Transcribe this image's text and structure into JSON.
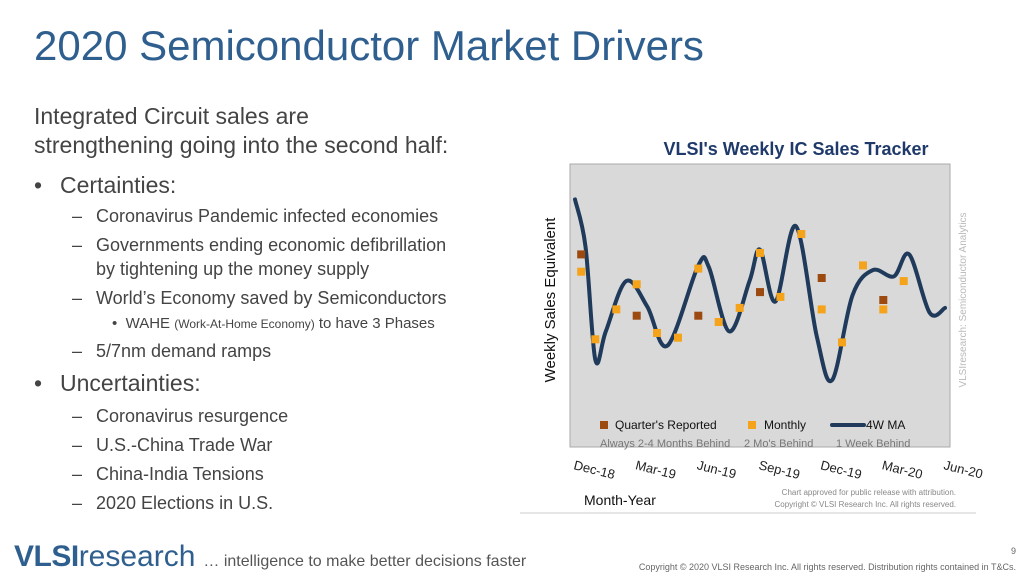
{
  "title": "2020 Semiconductor Market Drivers",
  "intro": [
    "Integrated Circuit sales are",
    "strengthening going into the second half:"
  ],
  "certainties": {
    "label": "Certainties:",
    "items": [
      "Coronavirus Pandemic infected economies",
      "Governments ending economic defibrillation",
      "by tightening up the money supply",
      "World’s Economy saved by Semiconductors",
      "5/7nm demand ramps"
    ],
    "wahe": {
      "pre": "WAHE ",
      "small": "(Work-At-Home Economy)",
      "post": " to have 3 Phases"
    }
  },
  "uncertainties": {
    "label": "Uncertainties:",
    "items": [
      "Coronavirus resurgence",
      "U.S.-China Trade War",
      "China-India Tensions",
      "2020 Elections in U.S."
    ]
  },
  "chart_data": {
    "type": "line",
    "title": "VLSI's Weekly IC Sales Tracker",
    "xlabel": "Month-Year",
    "ylabel": "Weekly Sales Equivalent",
    "categories": [
      "Dec-18",
      "Mar-19",
      "Jun-19",
      "Sep-19",
      "Dec-19",
      "Mar-20",
      "Jun-20"
    ],
    "series": [
      {
        "name": "Quarter's Reported",
        "note": "Always 2-4 Months Behind",
        "x": [
          0.1,
          1.0,
          2.0,
          3.0,
          4.0,
          5.0
        ],
        "values": [
          0.62,
          0.23,
          0.23,
          0.38,
          0.47,
          0.33
        ]
      },
      {
        "name": "Monthly",
        "note": "2 Mo's Behind",
        "x": [
          0.1,
          0.33,
          0.67,
          1.0,
          1.33,
          1.67,
          2.0,
          2.33,
          2.67,
          3.0,
          3.33,
          3.67,
          4.0,
          4.33,
          4.67,
          5.0,
          5.33
        ],
        "values": [
          0.51,
          0.08,
          0.27,
          0.43,
          0.12,
          0.09,
          0.53,
          0.19,
          0.28,
          0.63,
          0.35,
          0.75,
          0.27,
          0.06,
          0.55,
          0.27,
          0.45
        ]
      },
      {
        "name": "4W MA",
        "note": "1 Week Behind",
        "x": [
          0.0,
          0.17,
          0.33,
          0.5,
          0.83,
          1.17,
          1.5,
          2.0,
          2.17,
          2.5,
          2.83,
          3.0,
          3.25,
          3.58,
          3.92,
          4.17,
          4.5,
          4.83,
          5.17,
          5.42,
          5.75,
          6.0
        ],
        "values": [
          0.97,
          0.67,
          -0.05,
          0.13,
          0.45,
          0.29,
          0.04,
          0.55,
          0.54,
          0.13,
          0.45,
          0.65,
          0.32,
          0.8,
          0.1,
          -0.18,
          0.36,
          0.52,
          0.48,
          0.62,
          0.25,
          0.28
        ]
      }
    ],
    "ylim": [
      -0.3,
      1.1
    ],
    "grid": false,
    "legend_position": "bottom",
    "colors": {
      "quarter": "#9c4a0f",
      "monthly": "#f5a31a",
      "ma": "#1f3a5a",
      "plot_bg": "#d9d9d9",
      "title": "#1f3a6a"
    },
    "watermark": "VLSIresearch: Semiconductor Analytics",
    "approval": [
      "Chart approved  for public release with attribution.",
      "Copyright © VLSI Research Inc.  All rights reserved."
    ]
  },
  "footer": {
    "logo_bold": "VLSI",
    "logo_thin": "research",
    "tagline": "… intelligence to make better decisions faster",
    "page_number": "9",
    "copyright": "Copyright © 2020 VLSI Research Inc. All rights reserved. Distribution rights contained in T&Cs."
  }
}
